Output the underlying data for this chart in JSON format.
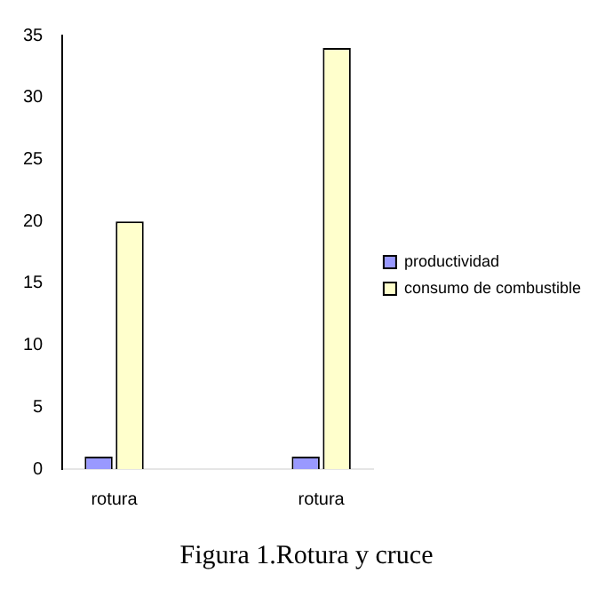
{
  "chart_data": {
    "type": "bar",
    "title": "Figura 1.Rotura y cruce",
    "categories": [
      "rotura",
      null,
      "rotura"
    ],
    "series": [
      {
        "name": "productividad",
        "color": "#9999ff",
        "values": [
          1,
          0,
          1
        ]
      },
      {
        "name": "consumo de combustible",
        "color": "#ffffcc",
        "values": [
          20,
          0,
          34
        ]
      }
    ],
    "ylim": [
      0,
      35
    ],
    "yticks": [
      0,
      5,
      10,
      15,
      20,
      25,
      30,
      35
    ],
    "grid": false,
    "legend": "right"
  }
}
